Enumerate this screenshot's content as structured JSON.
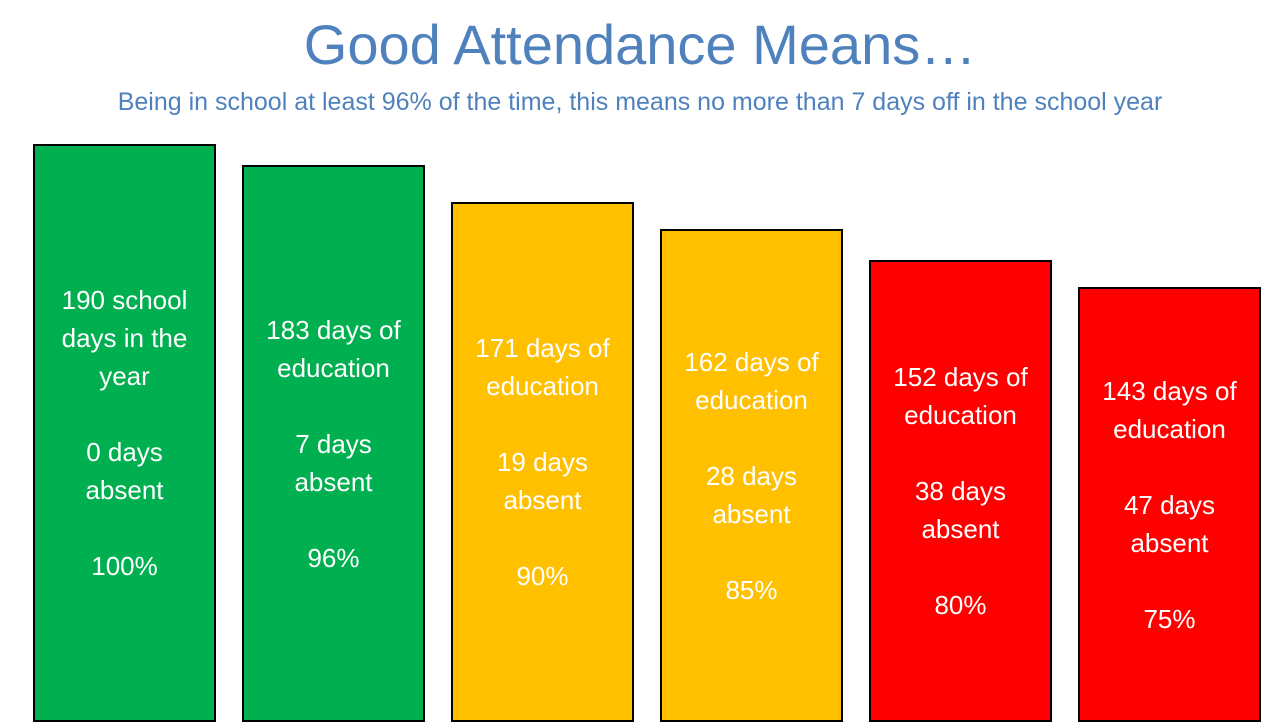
{
  "chart_data": {
    "type": "bar",
    "title": "Good Attendance Means…",
    "subtitle": "Being in school at least 96% of the time, this means no more than 7 days off in the school year",
    "ylim": [
      0,
      190
    ],
    "bars": [
      {
        "value": 190,
        "color": "#00B050",
        "lines": [
          [
            "190 school",
            "days in the",
            "year"
          ],
          [
            "0 days",
            "absent"
          ],
          [
            "100%"
          ]
        ]
      },
      {
        "value": 183,
        "color": "#00B050",
        "lines": [
          [
            "183 days of",
            "education"
          ],
          [
            "7 days",
            "absent"
          ],
          [
            "96%"
          ]
        ]
      },
      {
        "value": 171,
        "color": "#FFC000",
        "lines": [
          [
            "171 days of",
            "education"
          ],
          [
            "19 days",
            "absent"
          ],
          [
            "90%"
          ]
        ]
      },
      {
        "value": 162,
        "color": "#FFC000",
        "lines": [
          [
            "162 days of",
            "education"
          ],
          [
            "28 days",
            "absent"
          ],
          [
            "85%"
          ]
        ]
      },
      {
        "value": 152,
        "color": "#FF0000",
        "lines": [
          [
            "152 days of",
            "education"
          ],
          [
            "38 days",
            "absent"
          ],
          [
            "80%"
          ]
        ]
      },
      {
        "value": 143,
        "color": "#FF0000",
        "lines": [
          [
            "143 days of",
            "education"
          ],
          [
            "47 days",
            "absent"
          ],
          [
            "75%"
          ]
        ]
      }
    ]
  }
}
